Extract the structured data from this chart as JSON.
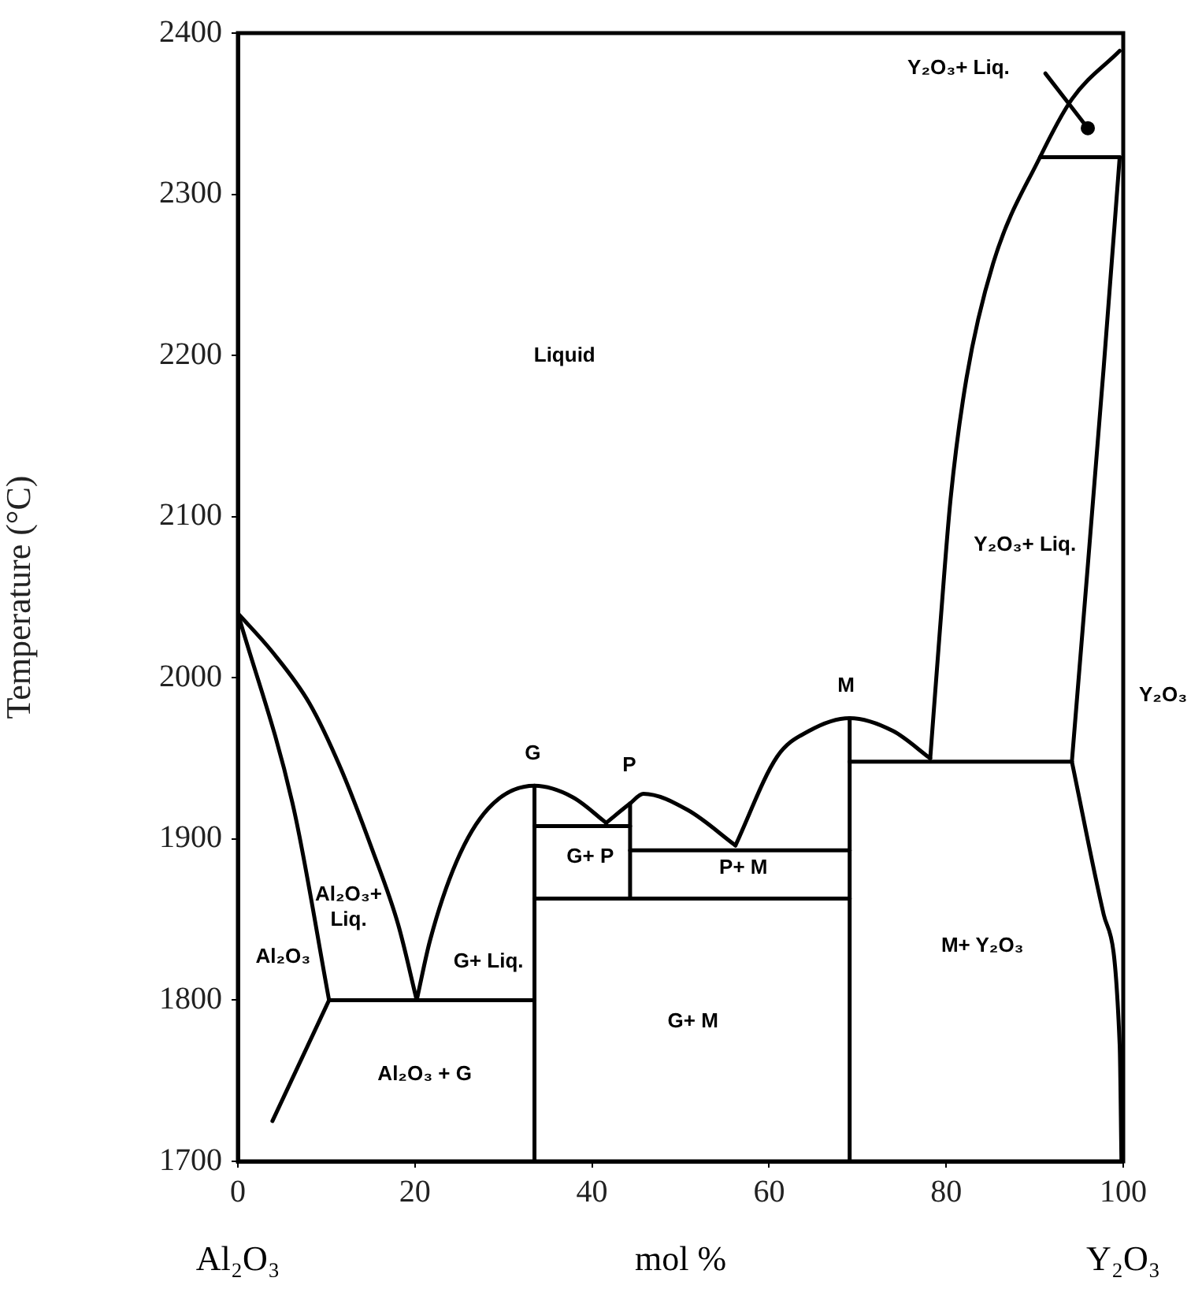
{
  "chart_data": {
    "type": "line",
    "xlabel": "mol %",
    "ylabel": "Temperature (°C)",
    "xlim": [
      0,
      100
    ],
    "ylim": [
      1700,
      2400
    ],
    "xticks": [
      0,
      20,
      40,
      60,
      80,
      100
    ],
    "yticks": [
      1700,
      1800,
      1900,
      2000,
      2100,
      2200,
      2300,
      2400
    ],
    "grid": false,
    "legend": false,
    "marker": "none",
    "line_style": "solid",
    "series": [
      {
        "color": "#000000",
        "x": [
          0,
          3.9,
          8.1,
          11.6,
          15.2,
          18.1,
          20.2
        ],
        "values": [
          2040,
          2016,
          1984,
          1944,
          1893,
          1847,
          1800
        ]
      },
      {
        "color": "#000000",
        "x": [
          0,
          6.3,
          10.3
        ],
        "values": [
          2040,
          1919,
          1800
        ]
      },
      {
        "color": "#000000",
        "x": [
          3.9,
          10.3
        ],
        "values": [
          1725,
          1800
        ]
      },
      {
        "color": "#000000",
        "x": [
          10.3,
          33.5
        ],
        "values": [
          1800,
          1800
        ]
      },
      {
        "color": "#000000",
        "x": [
          20.2,
          21.7,
          24.7,
          28.3,
          33.5,
          37.8,
          41.6
        ],
        "values": [
          1800,
          1837,
          1886,
          1919,
          1933,
          1926,
          1910
        ]
      },
      {
        "color": "#000000",
        "x": [
          41.6,
          44.3,
          45.8,
          50.8,
          56.2
        ],
        "values": [
          1910,
          1922,
          1928,
          1918,
          1896
        ]
      },
      {
        "color": "#000000",
        "x": [
          56.2,
          60.9,
          64.5,
          69.1,
          74.0,
          78.2
        ],
        "values": [
          1896,
          1951,
          1967,
          1975,
          1967,
          1950
        ]
      },
      {
        "color": "#000000",
        "x": [
          78.2,
          79.3,
          80.5,
          82.3,
          85.3,
          90.6,
          94.2,
          99.6
        ],
        "values": [
          1950,
          2030,
          2111,
          2186,
          2257,
          2323,
          2359,
          2389
        ]
      },
      {
        "color": "#000000",
        "x": [
          94.2,
          95.4,
          97.8,
          99.6
        ],
        "values": [
          1948,
          2029,
          2193,
          2323
        ]
      },
      {
        "color": "#000000",
        "x": [
          94.2,
          97.8,
          99.6,
          99.8
        ],
        "values": [
          1948,
          1853,
          1772,
          1700
        ]
      },
      {
        "color": "#000000",
        "x": [
          90.6,
          99.6
        ],
        "values": [
          2323,
          2323
        ]
      },
      {
        "color": "#000000",
        "x": [
          33.5,
          33.5
        ],
        "values": [
          1700,
          1933
        ]
      },
      {
        "color": "#000000",
        "x": [
          44.3,
          44.3
        ],
        "values": [
          1863,
          1922
        ]
      },
      {
        "color": "#000000",
        "x": [
          69.1,
          69.1
        ],
        "values": [
          1700,
          1975
        ]
      },
      {
        "color": "#000000",
        "x": [
          33.5,
          44.3
        ],
        "values": [
          1908,
          1908
        ]
      },
      {
        "color": "#000000",
        "x": [
          44.3,
          69.1
        ],
        "values": [
          1893,
          1893
        ]
      },
      {
        "color": "#000000",
        "x": [
          33.5,
          69.1
        ],
        "values": [
          1863,
          1863
        ]
      },
      {
        "color": "#000000",
        "x": [
          69.1,
          94.2
        ],
        "values": [
          1948,
          1948
        ]
      },
      {
        "color": "#000000",
        "x": [
          91.2,
          96.0
        ],
        "values": [
          2375,
          2341
        ]
      },
      {
        "type": "scatter",
        "marker": "circle",
        "color": "#000000",
        "x": [
          96.0
        ],
        "values": [
          2341
        ]
      }
    ],
    "annotations": [
      "Liquid",
      "Al₂O₃+ Liq.",
      "Al₂O₃",
      "G+ Liq.",
      "Al₂O₃ + G",
      "G",
      "P",
      "G+ P",
      "P+ M",
      "G+ M",
      "M",
      "M+ Y₂O₃",
      "Y₂O₃",
      "Y₂O₃+ Liq.",
      "Y₂O₃+ Liq.",
      "Al₂O₃",
      "Y₂O₃"
    ]
  }
}
